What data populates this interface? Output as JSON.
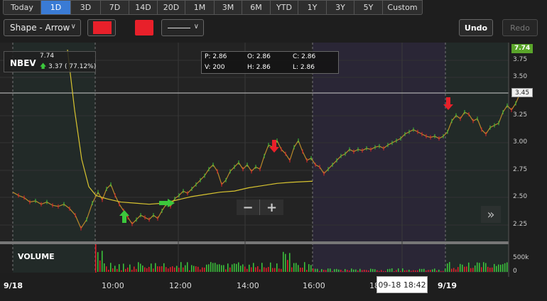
{
  "range_tabs": [
    {
      "label": "Today",
      "w": 54,
      "active": false
    },
    {
      "label": "1D",
      "w": 42,
      "active": true
    },
    {
      "label": "3D",
      "w": 42,
      "active": false
    },
    {
      "label": "7D",
      "w": 40,
      "active": false
    },
    {
      "label": "14D",
      "w": 40,
      "active": false
    },
    {
      "label": "20D",
      "w": 39,
      "active": false
    },
    {
      "label": "1M",
      "w": 41,
      "active": false
    },
    {
      "label": "3M",
      "w": 39,
      "active": false
    },
    {
      "label": "6M",
      "w": 40,
      "active": false
    },
    {
      "label": "YTD",
      "w": 39,
      "active": false
    },
    {
      "label": "1Y",
      "w": 40,
      "active": false
    },
    {
      "label": "3Y",
      "w": 39,
      "active": false
    },
    {
      "label": "5Y",
      "w": 40,
      "active": false
    },
    {
      "label": "Custom",
      "w": 56,
      "active": false
    }
  ],
  "toolbar": {
    "shape_label": "Shape - Arrow",
    "swatch_color": "#e8202a",
    "undo_label": "Undo",
    "redo_label": "Redo"
  },
  "ticker": {
    "symbol": "NBEV",
    "price": "7.74",
    "change": "3.37 ( 77.12%)"
  },
  "ohlc": {
    "p": "P: 2.86",
    "o": "O: 2.86",
    "c": "C: 2.86",
    "v": "V: 200",
    "h": "H: 2.86",
    "l": "L: 2.86"
  },
  "zoom": {
    "minus": "−",
    "plus": "+"
  },
  "next_icon": "»",
  "volume_label": "VOLUME",
  "price_axis": [
    "3.75",
    "3.50",
    "3.25",
    "3.00",
    "2.75",
    "2.50",
    "2.25"
  ],
  "volume_axis": [
    "500k",
    "0"
  ],
  "last_price": "7.74",
  "cursor_price": "3.45",
  "time_axis": [
    "9/18",
    "10:00",
    "12:00",
    "14:00",
    "16:00",
    "18",
    "9/19"
  ],
  "cursor_time": "09-18 18:42",
  "colors": {
    "up": "#3cc83c",
    "down": "#e8202a",
    "ma": "#d8c430",
    "extended": "#2a2636",
    "regular": "#222a28"
  },
  "chart_data": {
    "type": "line",
    "x_ticks": [
      "9/18",
      "10:00",
      "12:00",
      "14:00",
      "16:00",
      "9/19"
    ],
    "y_ticks": [
      3.75,
      3.5,
      3.25,
      3.0,
      2.75,
      2.5,
      2.25
    ],
    "ylim": [
      2.15,
      3.85
    ],
    "series": [
      {
        "values": [
          [
            0,
            2.55
          ],
          [
            8,
            2.52
          ],
          [
            16,
            2.5
          ],
          [
            24,
            2.46
          ],
          [
            32,
            2.47
          ],
          [
            40,
            2.44
          ],
          [
            48,
            2.46
          ],
          [
            56,
            2.43
          ],
          [
            64,
            2.42
          ],
          [
            72,
            2.44
          ],
          [
            80,
            2.4
          ],
          [
            88,
            2.34
          ],
          [
            96,
            2.22
          ],
          [
            104,
            2.3
          ],
          [
            112,
            2.45
          ],
          [
            120,
            2.55
          ],
          [
            126,
            2.48
          ],
          [
            132,
            2.58
          ],
          [
            138,
            2.62
          ],
          [
            144,
            2.52
          ],
          [
            150,
            2.44
          ],
          [
            156,
            2.38
          ],
          [
            162,
            2.32
          ],
          [
            168,
            2.26
          ],
          [
            174,
            2.3
          ],
          [
            180,
            2.34
          ],
          [
            186,
            2.32
          ],
          [
            192,
            2.3
          ],
          [
            198,
            2.34
          ],
          [
            204,
            2.31
          ],
          [
            210,
            2.38
          ],
          [
            216,
            2.44
          ],
          [
            222,
            2.42
          ],
          [
            228,
            2.49
          ],
          [
            234,
            2.52
          ],
          [
            240,
            2.56
          ],
          [
            246,
            2.54
          ],
          [
            252,
            2.58
          ],
          [
            258,
            2.62
          ],
          [
            264,
            2.66
          ],
          [
            270,
            2.7
          ],
          [
            276,
            2.76
          ],
          [
            282,
            2.8
          ],
          [
            288,
            2.74
          ],
          [
            294,
            2.62
          ],
          [
            300,
            2.66
          ],
          [
            306,
            2.74
          ],
          [
            312,
            2.78
          ],
          [
            318,
            2.82
          ],
          [
            324,
            2.76
          ],
          [
            330,
            2.8
          ],
          [
            336,
            2.74
          ],
          [
            342,
            2.78
          ],
          [
            348,
            2.76
          ],
          [
            354,
            2.88
          ],
          [
            360,
            2.98
          ],
          [
            366,
            2.96
          ],
          [
            372,
            3.02
          ],
          [
            378,
            2.94
          ],
          [
            384,
            2.9
          ],
          [
            390,
            2.84
          ],
          [
            396,
            2.96
          ],
          [
            402,
            3.02
          ],
          [
            408,
            2.92
          ],
          [
            414,
            2.84
          ],
          [
            420,
            2.86
          ],
          [
            426,
            2.8
          ],
          [
            432,
            2.78
          ],
          [
            438,
            2.72
          ],
          [
            444,
            2.76
          ],
          [
            450,
            2.8
          ],
          [
            456,
            2.84
          ],
          [
            462,
            2.88
          ],
          [
            468,
            2.9
          ],
          [
            474,
            2.94
          ],
          [
            480,
            2.92
          ],
          [
            486,
            2.94
          ],
          [
            492,
            2.93
          ],
          [
            498,
            2.95
          ],
          [
            504,
            2.94
          ],
          [
            510,
            2.96
          ],
          [
            516,
            2.97
          ],
          [
            522,
            2.95
          ],
          [
            528,
            2.98
          ],
          [
            534,
            3.0
          ],
          [
            540,
            3.02
          ],
          [
            546,
            3.04
          ],
          [
            552,
            3.08
          ],
          [
            558,
            3.1
          ],
          [
            564,
            3.12
          ],
          [
            570,
            3.1
          ],
          [
            576,
            3.08
          ],
          [
            582,
            3.06
          ],
          [
            588,
            3.05
          ],
          [
            594,
            3.06
          ],
          [
            600,
            3.04
          ],
          [
            606,
            3.06
          ],
          [
            612,
            3.1
          ],
          [
            618,
            3.2
          ],
          [
            624,
            3.25
          ],
          [
            630,
            3.22
          ],
          [
            636,
            3.28
          ],
          [
            642,
            3.26
          ],
          [
            648,
            3.2
          ],
          [
            654,
            3.22
          ],
          [
            660,
            3.12
          ],
          [
            666,
            3.08
          ],
          [
            672,
            3.14
          ],
          [
            678,
            3.16
          ],
          [
            684,
            3.18
          ],
          [
            690,
            3.28
          ],
          [
            696,
            3.34
          ],
          [
            702,
            3.3
          ],
          [
            708,
            3.36
          ],
          [
            714,
            3.45
          ]
        ]
      },
      {
        "values": [
          [
            95,
            3.85
          ],
          [
            105,
            3.3
          ],
          [
            115,
            2.85
          ],
          [
            125,
            2.6
          ],
          [
            135,
            2.52
          ],
          [
            150,
            2.49
          ],
          [
            170,
            2.46
          ],
          [
            190,
            2.45
          ],
          [
            210,
            2.44
          ],
          [
            230,
            2.45
          ],
          [
            250,
            2.48
          ],
          [
            270,
            2.51
          ],
          [
            290,
            2.53
          ],
          [
            310,
            2.55
          ],
          [
            330,
            2.56
          ],
          [
            350,
            2.59
          ],
          [
            370,
            2.61
          ],
          [
            390,
            2.63
          ],
          [
            410,
            2.64
          ],
          [
            440,
            2.65
          ]
        ]
      }
    ]
  }
}
